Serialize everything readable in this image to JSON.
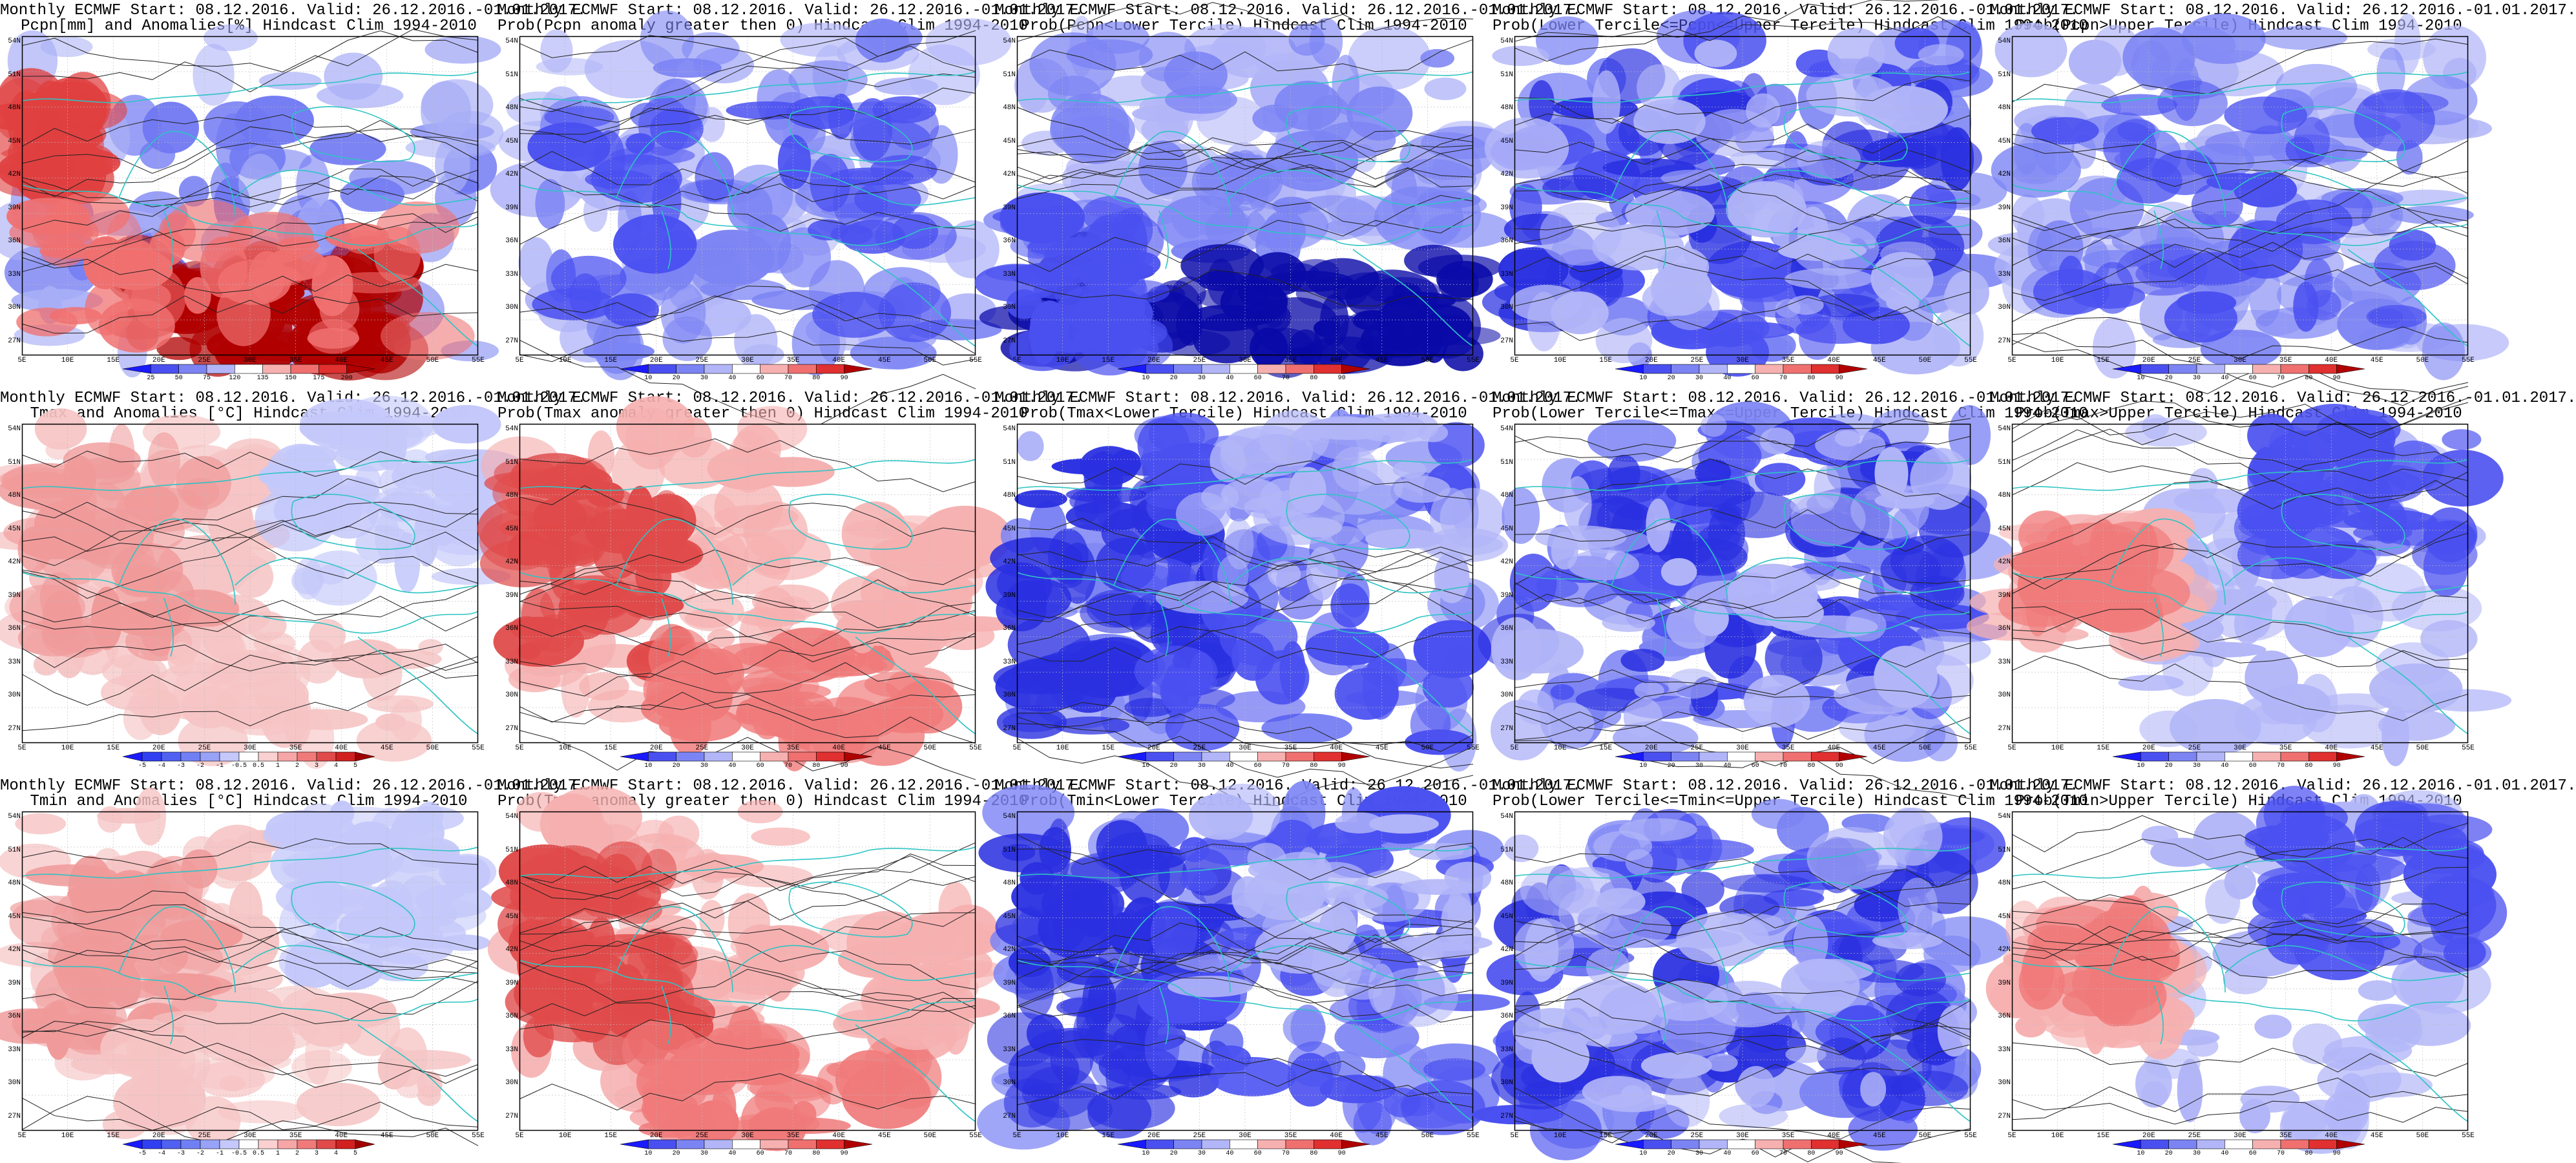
{
  "figure": {
    "panels": [
      {
        "id": "p1",
        "title1": "Monthly ECMWF Start: 08.12.2016. Valid: 26.12.2016.-01.01.2017.",
        "title2": "Pcpn[mm] and Anomalies[%]",
        "title2b": " Hindcast Clim 1994-2010",
        "style": "pcpn_anom",
        "cbar": "pcpn_anom"
      },
      {
        "id": "p2",
        "title1": "Monthly ECMWF Start: 08.12.2016. Valid: 26.12.2016.-01.01.2017.",
        "title2": "Prob(Pcpn anomaly greater then 0) Hindcast Clim 1994-2010",
        "style": "cool_light",
        "cbar": "prob"
      },
      {
        "id": "p3",
        "title1": "Monthly ECMWF Start: 08.12.2016. Valid: 26.12.2016.-01.01.2017.",
        "title2": "Prob(Pcpn<Lower Tercile) Hindcast Clim 1994-2010",
        "style": "pcpn_lower",
        "cbar": "prob"
      },
      {
        "id": "p4",
        "title1": "Monthly ECMWF Start: 08.12.2016. Valid: 26.12.2016.-01.01.2017.",
        "title2": "Prob(Lower Tercile<=Pcpn<=Upper Tercile) Hindcast Clim 1994-2010",
        "style": "cool_mottled",
        "cbar": "prob"
      },
      {
        "id": "p5",
        "title1": "Monthly ECMWF Start: 08.12.2016. Valid: 26.12.2016.-01.01.2017.",
        "title2": "Prob(Pcpn>Upper Tercile) Hindcast Clim 1994-2010",
        "style": "cool_light",
        "cbar": "prob"
      },
      {
        "id": "p6",
        "title1": "Monthly ECMWF Start: 08.12.2016. Valid: 26.12.2016.-01.01.2017.",
        "title2": "Tmax and Anomalies [°C] Hindcast Clim 1994-2010",
        "style": "warm_west",
        "cbar": "temp_anom"
      },
      {
        "id": "p7",
        "title1": "Monthly ECMWF Start: 08.12.2016. Valid: 26.12.2016.-01.01.2017.",
        "title2": "Prob(Tmax anomaly greater then 0) Hindcast Clim 1994-2010",
        "style": "warm_strong",
        "cbar": "prob"
      },
      {
        "id": "p8",
        "title1": "Monthly ECMWF Start: 08.12.2016. Valid: 26.12.2016.-01.01.2017.",
        "title2": "Prob(Tmax<Lower Tercile) Hindcast Clim 1994-2010",
        "style": "cool_strong",
        "cbar": "prob"
      },
      {
        "id": "p9",
        "title1": "Monthly ECMWF Start: 08.12.2016. Valid: 26.12.2016.-01.01.2017.",
        "title2": "Prob(Lower Tercile<=Tmax<=Upper Tercile) Hindcast Clim 1994-2010",
        "style": "cool_mottled",
        "cbar": "prob"
      },
      {
        "id": "p10",
        "title1": "Monthly ECMWF Start: 08.12.2016. Valid: 26.12.2016.-01.01.2017.",
        "title2": "Prob(Tmax>Upper Tercile) Hindcast Clim 1994-2010",
        "style": "mixed",
        "cbar": "prob"
      },
      {
        "id": "p11",
        "title1": "Monthly ECMWF Start: 08.12.2016. Valid: 26.12.2016.-01.01.2017.",
        "title2": "Tmin and Anomalies [°C] Hindcast Clim 1994-2010",
        "style": "warm_west",
        "cbar": "temp_anom"
      },
      {
        "id": "p12",
        "title1": "Monthly ECMWF Start: 08.12.2016. Valid: 26.12.2016.-01.01.2017.",
        "title2": "Prob(Tmin anomaly greater then 0) Hindcast Clim 1994-2010",
        "style": "warm_strong",
        "cbar": "prob"
      },
      {
        "id": "p13",
        "title1": "Monthly ECMWF Start: 08.12.2016. Valid: 26.12.2016.-01.01.2017.",
        "title2": "Prob(Tmin<Lower Tercile) Hindcast Clim 1994-2010",
        "style": "cool_strong",
        "cbar": "prob"
      },
      {
        "id": "p14",
        "title1": "Monthly ECMWF Start: 08.12.2016. Valid: 26.12.2016.-01.01.2017.",
        "title2": "Prob(Lower Tercile<=Tmin<=Upper Tercile) Hindcast Clim 1994-2010",
        "style": "cool_mottled",
        "cbar": "prob"
      },
      {
        "id": "p15",
        "title1": "Monthly ECMWF Start: 08.12.2016. Valid: 26.12.2016.-01.01.2017.",
        "title2": "Prob(Tmin>Upper Tercile) Hindcast Clim 1994-2010",
        "style": "mixed",
        "cbar": "prob"
      }
    ],
    "lat_labels": [
      "54N",
      "51N",
      "48N",
      "45N",
      "42N",
      "39N",
      "36N",
      "33N",
      "30N",
      "27N"
    ],
    "lon_labels": [
      "5E",
      "10E",
      "15E",
      "20E",
      "25E",
      "30E",
      "35E",
      "40E",
      "45E",
      "50E",
      "55E"
    ],
    "colorbars": {
      "prob": {
        "labels": [
          "10",
          "20",
          "30",
          "40",
          "60",
          "70",
          "80",
          "90"
        ],
        "colors": [
          "#1a1aff",
          "#4a50f0",
          "#7c84f4",
          "#b2b6f8",
          "#ffffff",
          "#f7b0b0",
          "#f07070",
          "#e03030",
          "#b00000"
        ]
      },
      "pcpn_anom": {
        "labels": [
          "25",
          "50",
          "75",
          "120",
          "135",
          "150",
          "175",
          "200"
        ],
        "colors": [
          "#1a1aff",
          "#4a50f0",
          "#7c84f4",
          "#b2b6f8",
          "#ffffff",
          "#f7b0b0",
          "#f07070",
          "#e03030",
          "#b00000"
        ]
      },
      "temp_anom": {
        "labels": [
          "-5",
          "-4",
          "-3",
          "-2",
          "-1",
          "-0.5",
          "0.5",
          "1",
          "2",
          "3",
          "4",
          "5"
        ],
        "colors": [
          "#1a1aff",
          "#3040f0",
          "#5060f0",
          "#7080f4",
          "#98a2f6",
          "#c4c8fa",
          "#ffffff",
          "#fad0d0",
          "#f6a6a6",
          "#f07a7a",
          "#e04a4a",
          "#d02020",
          "#a00000"
        ]
      }
    },
    "palette": {
      "coast": "#2ec4c4",
      "contour": "#222222",
      "frame": "#000000"
    }
  }
}
